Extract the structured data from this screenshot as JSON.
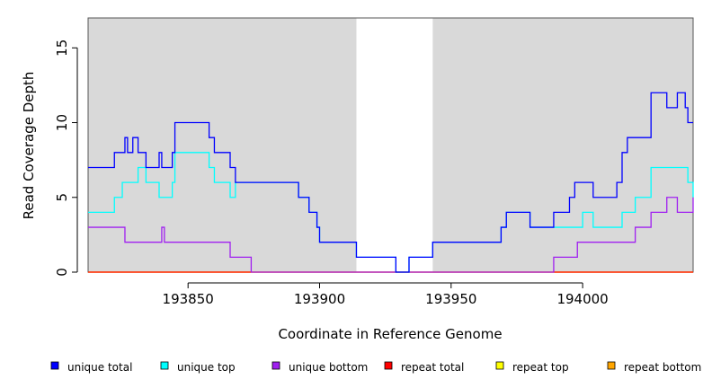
{
  "chart_data": {
    "type": "line",
    "title": "",
    "xlabel": "Coordinate in Reference Genome",
    "ylabel": "Read Coverage Depth",
    "xlim": [
      193812,
      194042
    ],
    "ylim": [
      0,
      17
    ],
    "x_ticks": [
      193850,
      193900,
      193950,
      194000
    ],
    "x_tick_labels": [
      "193850",
      "193900",
      "193950",
      "194000"
    ],
    "y_ticks": [
      0,
      5,
      10,
      15
    ],
    "y_tick_labels": [
      "0",
      "5",
      "10",
      "15"
    ],
    "shaded_regions": [
      [
        193812,
        193914
      ],
      [
        193943,
        194042
      ]
    ],
    "background_shade_color": "#d9d9d9",
    "legend_position": "bottom",
    "series": [
      {
        "name": "unique total",
        "color": "#0000ff",
        "x": [
          193812,
          193822,
          193826,
          193827,
          193829,
          193831,
          193834,
          193839,
          193840,
          193841,
          193844,
          193845,
          193854,
          193858,
          193860,
          193866,
          193868,
          193874,
          193892,
          193896,
          193899,
          193900,
          193914,
          193927,
          193929,
          193931,
          193934,
          193943,
          193969,
          193971,
          193978,
          193980,
          193989,
          193995,
          193997,
          194004,
          194013,
          194015,
          194017,
          194022,
          194026,
          194029,
          194032,
          194036,
          194039,
          194040,
          194041,
          194042
        ],
        "y": [
          7,
          8,
          9,
          8,
          9,
          8,
          7,
          8,
          7,
          7,
          8,
          10,
          10,
          9,
          8,
          7,
          6,
          6,
          5,
          4,
          3,
          2,
          1,
          1,
          0,
          0,
          1,
          2,
          3,
          4,
          4,
          3,
          4,
          5,
          6,
          5,
          6,
          8,
          9,
          9,
          12,
          12,
          11,
          12,
          11,
          10,
          10,
          10
        ]
      },
      {
        "name": "unique top",
        "color": "#00ffff",
        "x": [
          193812,
          193822,
          193825,
          193831,
          193834,
          193839,
          193840,
          193841,
          193844,
          193845,
          193854,
          193858,
          193860,
          193866,
          193868,
          193874,
          193892,
          193896,
          193899,
          193900,
          193914,
          193927,
          193929,
          193931,
          193934,
          193943,
          193969,
          193971,
          193978,
          193980,
          193989,
          194000,
          194004,
          194013,
          194015,
          194020,
          194026,
          194031,
          194036,
          194040,
          194042
        ],
        "y": [
          4,
          5,
          6,
          7,
          6,
          5,
          5,
          5,
          6,
          8,
          8,
          7,
          6,
          5,
          6,
          6,
          5,
          4,
          3,
          2,
          1,
          1,
          0,
          0,
          1,
          2,
          3,
          4,
          4,
          3,
          3,
          4,
          3,
          3,
          4,
          5,
          7,
          7,
          7,
          6,
          5
        ]
      },
      {
        "name": "unique bottom",
        "color": "#a020f0",
        "x": [
          193812,
          193826,
          193840,
          193841,
          193866,
          193874,
          193989,
          193998,
          194020,
          194026,
          194032,
          194036,
          194042
        ],
        "y": [
          3,
          2,
          3,
          2,
          1,
          0,
          1,
          2,
          3,
          4,
          5,
          4,
          5
        ]
      },
      {
        "name": "repeat total",
        "color": "#ff0000",
        "x": [
          193812,
          194042
        ],
        "y": [
          0,
          0
        ]
      },
      {
        "name": "repeat top",
        "color": "#ffff00",
        "x": [
          193812,
          194042
        ],
        "y": [
          0,
          0
        ]
      },
      {
        "name": "repeat bottom",
        "color": "#ffa500",
        "x": [
          193812,
          194042
        ],
        "y": [
          0,
          0
        ]
      }
    ]
  }
}
